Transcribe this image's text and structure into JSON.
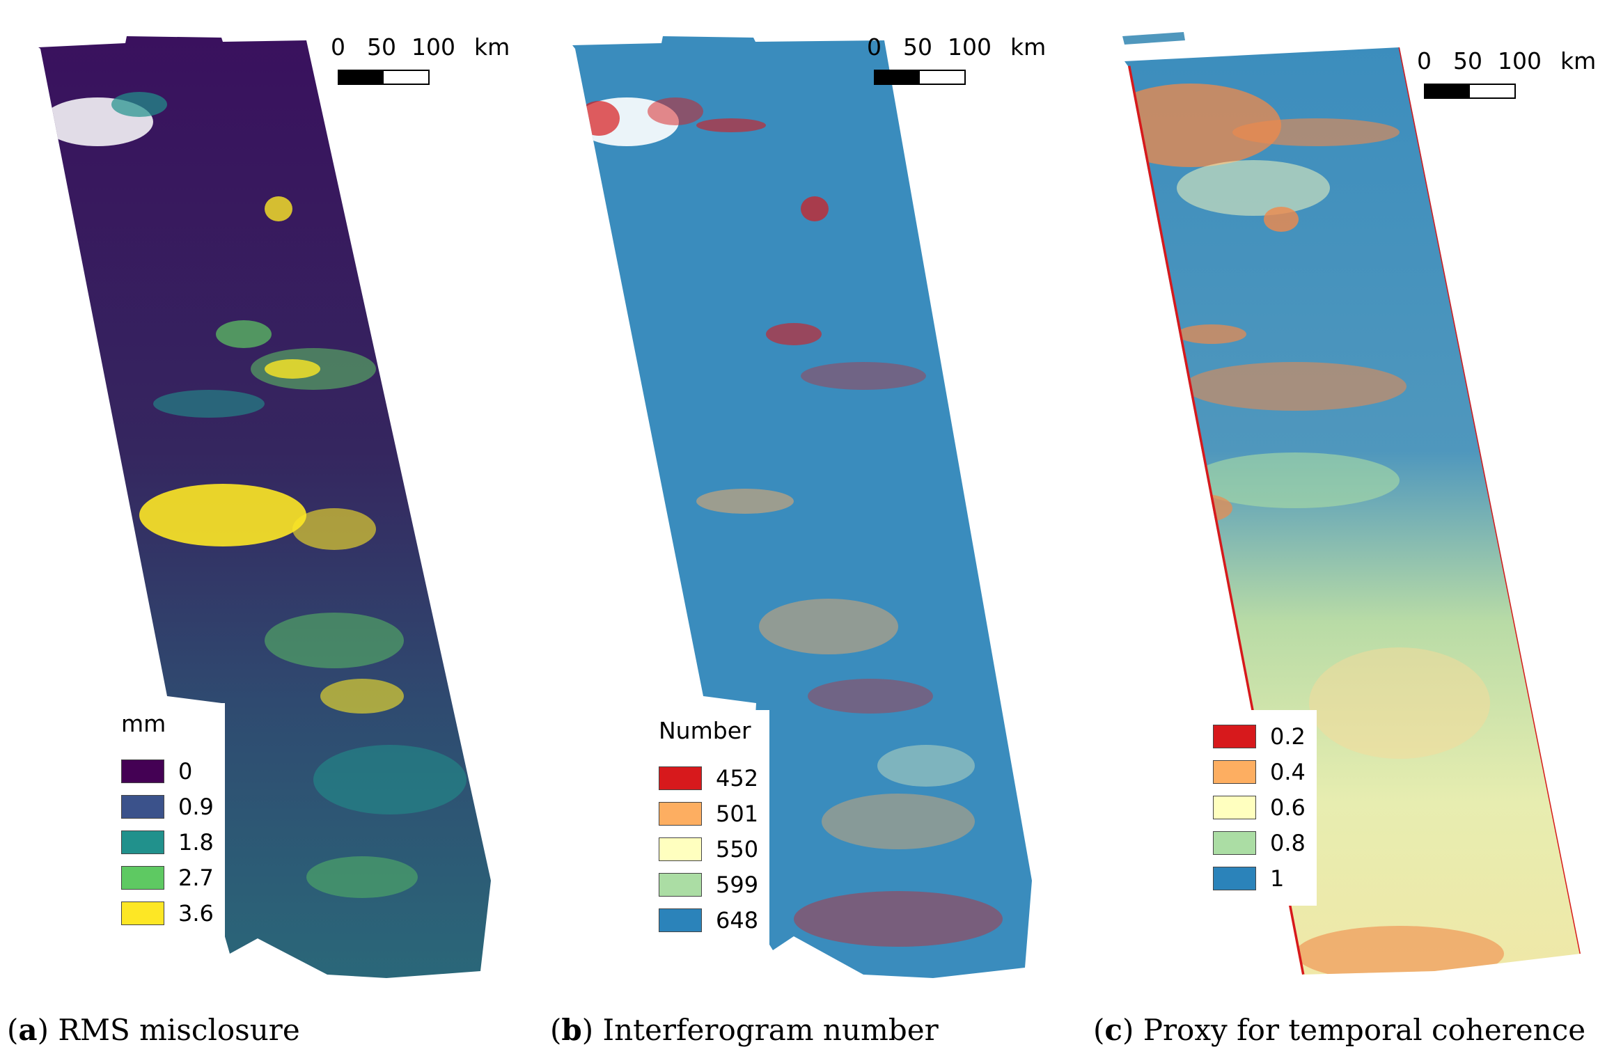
{
  "panels": [
    {
      "id": "a",
      "caption_letter": "a",
      "caption_text": "RMS misclosure",
      "scale": {
        "labels": [
          "0",
          "50",
          "100",
          "km"
        ]
      },
      "legend": {
        "title": "mm",
        "items": [
          {
            "label": "0",
            "color": "#440154"
          },
          {
            "label": "0.9",
            "color": "#3b528b"
          },
          {
            "label": "1.8",
            "color": "#21918c"
          },
          {
            "label": "2.7",
            "color": "#5ec962"
          },
          {
            "label": "3.6",
            "color": "#fde725"
          }
        ]
      }
    },
    {
      "id": "b",
      "caption_letter": "b",
      "caption_text": "Interferogram number",
      "scale": {
        "labels": [
          "0",
          "50",
          "100",
          "km"
        ]
      },
      "legend": {
        "title": "Number",
        "items": [
          {
            "label": "452",
            "color": "#d7191c"
          },
          {
            "label": "501",
            "color": "#fdae61"
          },
          {
            "label": "550",
            "color": "#ffffbf"
          },
          {
            "label": "599",
            "color": "#abdda4"
          },
          {
            "label": "648",
            "color": "#2b83ba"
          }
        ]
      }
    },
    {
      "id": "c",
      "caption_letter": "c",
      "caption_text": "Proxy for temporal coherence",
      "scale": {
        "labels": [
          "0",
          "50",
          "100",
          "km"
        ]
      },
      "legend": {
        "title": "",
        "items": [
          {
            "label": "0.2",
            "color": "#d7191c"
          },
          {
            "label": "0.4",
            "color": "#fdae61"
          },
          {
            "label": "0.6",
            "color": "#ffffbf"
          },
          {
            "label": "0.8",
            "color": "#abdda4"
          },
          {
            "label": "1",
            "color": "#2b83ba"
          }
        ]
      }
    }
  ]
}
